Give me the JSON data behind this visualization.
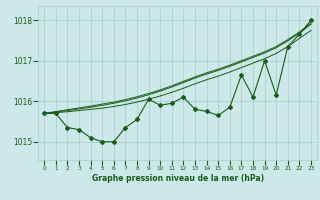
{
  "x": [
    0,
    1,
    2,
    3,
    4,
    5,
    6,
    7,
    8,
    9,
    10,
    11,
    12,
    13,
    14,
    15,
    16,
    17,
    18,
    19,
    20,
    21,
    22,
    23
  ],
  "y_main": [
    1015.7,
    1015.7,
    1015.35,
    1015.3,
    1015.1,
    1015.0,
    1015.0,
    1015.35,
    1015.55,
    1016.05,
    1015.9,
    1015.95,
    1016.1,
    1015.8,
    1015.75,
    1015.65,
    1015.85,
    1016.65,
    1016.1,
    1017.0,
    1016.15,
    1017.35,
    1017.65,
    1018.0
  ],
  "y_line1": [
    1015.7,
    1015.72,
    1015.74,
    1015.77,
    1015.8,
    1015.83,
    1015.87,
    1015.92,
    1015.98,
    1016.05,
    1016.13,
    1016.22,
    1016.32,
    1016.43,
    1016.53,
    1016.62,
    1016.72,
    1016.83,
    1016.94,
    1017.05,
    1017.18,
    1017.35,
    1017.55,
    1017.75
  ],
  "y_line2": [
    1015.7,
    1015.73,
    1015.77,
    1015.81,
    1015.85,
    1015.9,
    1015.95,
    1016.01,
    1016.08,
    1016.16,
    1016.25,
    1016.35,
    1016.46,
    1016.57,
    1016.67,
    1016.76,
    1016.86,
    1016.97,
    1017.08,
    1017.19,
    1017.32,
    1017.49,
    1017.68,
    1017.9
  ],
  "y_line3": [
    1015.7,
    1015.745,
    1015.79,
    1015.835,
    1015.88,
    1015.93,
    1015.98,
    1016.04,
    1016.11,
    1016.19,
    1016.28,
    1016.38,
    1016.49,
    1016.6,
    1016.7,
    1016.79,
    1016.89,
    1017.0,
    1017.11,
    1017.22,
    1017.35,
    1017.52,
    1017.71,
    1017.93
  ],
  "bg_color": "#cce8e8",
  "grid_color": "#a8cccc",
  "line_color": "#1a5c1a",
  "text_color": "#1a5c1a",
  "ylabel_ticks": [
    1015,
    1016,
    1017,
    1018
  ],
  "xlabel_label": "Graphe pression niveau de la mer (hPa)",
  "ylim": [
    1014.55,
    1018.35
  ],
  "xlim": [
    -0.5,
    23.5
  ]
}
